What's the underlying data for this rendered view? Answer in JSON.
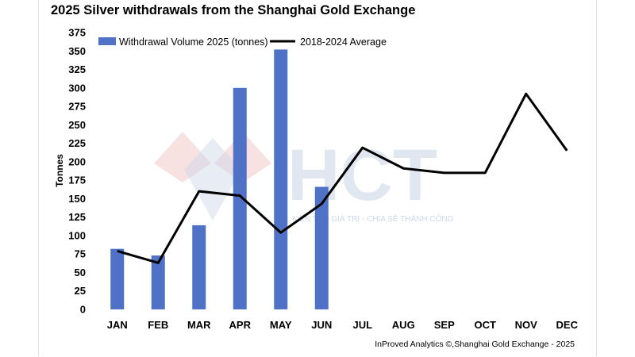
{
  "title": "2025 Silver withdrawals from the Shanghai Gold Exchange",
  "source": "InProved Analytics ©,Shanghai Gold Exchange - 2025",
  "watermark": {
    "text": "HCT",
    "tagline": "KIẾN TẠO GIÁ TRỊ - CHIA SẺ THÀNH CÔNG"
  },
  "colors": {
    "bar": "#4f72c7",
    "line": "#000000"
  },
  "chart_data": {
    "type": "bar",
    "title": "2025 Silver withdrawals from the Shanghai Gold Exchange",
    "xlabel": "",
    "ylabel": "Tonnes",
    "ylim": [
      0,
      375
    ],
    "yticks": [
      0,
      25,
      50,
      75,
      100,
      125,
      150,
      175,
      200,
      225,
      250,
      275,
      300,
      325,
      350,
      375
    ],
    "grid": false,
    "legend": "top",
    "categories": [
      "JAN",
      "FEB",
      "MAR",
      "APR",
      "MAY",
      "JUN",
      "JUL",
      "AUG",
      "SEP",
      "OCT",
      "NOV",
      "DEC"
    ],
    "series": [
      {
        "name": "Withdrawal Volume 2025 (tonnes)",
        "type": "bar",
        "values": [
          82,
          73,
          114,
          300,
          352,
          166,
          null,
          null,
          null,
          null,
          null,
          null
        ]
      },
      {
        "name": "2018-2024 Average",
        "type": "line",
        "values": [
          79,
          63,
          160,
          154,
          104,
          143,
          219,
          191,
          185,
          185,
          292,
          215
        ]
      }
    ]
  }
}
